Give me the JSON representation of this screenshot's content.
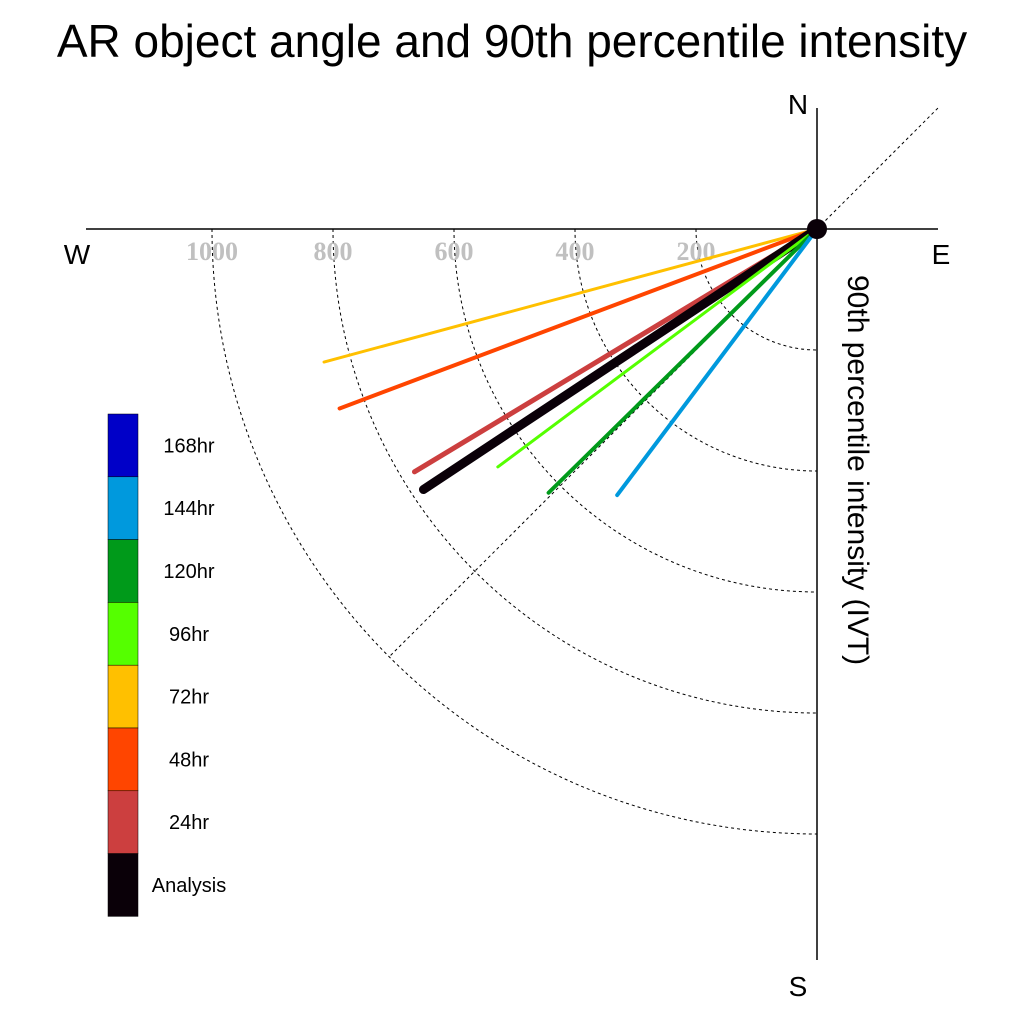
{
  "chart_data": {
    "type": "polar-vector",
    "title": "AR object angle and 90th percentile intensity",
    "ylabel": "90th percentile intensity (IVT)",
    "compass": {
      "north": "N",
      "south": "S",
      "east": "E",
      "west": "W"
    },
    "radial_ticks": [
      "1000",
      "800",
      "600",
      "400",
      "200"
    ],
    "radial_tick_values": [
      1000,
      800,
      600,
      400,
      200
    ],
    "rlim": [
      0,
      1200
    ],
    "grid": true,
    "legend_position": "left",
    "series": [
      {
        "name": "72hr",
        "color": "#ffc000",
        "angle_deg": 195.1,
        "intensity": 844,
        "width": 3
      },
      {
        "name": "48hr",
        "color": "#ff4500",
        "angle_deg": 200.6,
        "intensity": 843,
        "width": 4
      },
      {
        "name": "24hr",
        "color": "#cc3f3f",
        "angle_deg": 211.1,
        "intensity": 777,
        "width": 5
      },
      {
        "name": "Analysis",
        "color": "#0a0008",
        "angle_deg": 213.5,
        "intensity": 780,
        "width": 9
      },
      {
        "name": "96hr",
        "color": "#55ff00",
        "angle_deg": 216.7,
        "intensity": 658,
        "width": 3
      },
      {
        "name": "120hr",
        "color": "#009a1a",
        "angle_deg": 224.5,
        "intensity": 622,
        "width": 4
      },
      {
        "name": "144hr",
        "color": "#0099dd",
        "angle_deg": 233.1,
        "intensity": 550,
        "width": 4
      }
    ],
    "legend": [
      {
        "label": "168hr",
        "color": "#0000c8"
      },
      {
        "label": "144hr",
        "color": "#0099dd"
      },
      {
        "label": "120hr",
        "color": "#009a1a"
      },
      {
        "label": "96hr",
        "color": "#55ff00"
      },
      {
        "label": "72hr",
        "color": "#ffc000"
      },
      {
        "label": "48hr",
        "color": "#ff4500"
      },
      {
        "label": "24hr",
        "color": "#cc3f3f"
      },
      {
        "label": "Analysis",
        "color": "#0a0008"
      }
    ]
  }
}
